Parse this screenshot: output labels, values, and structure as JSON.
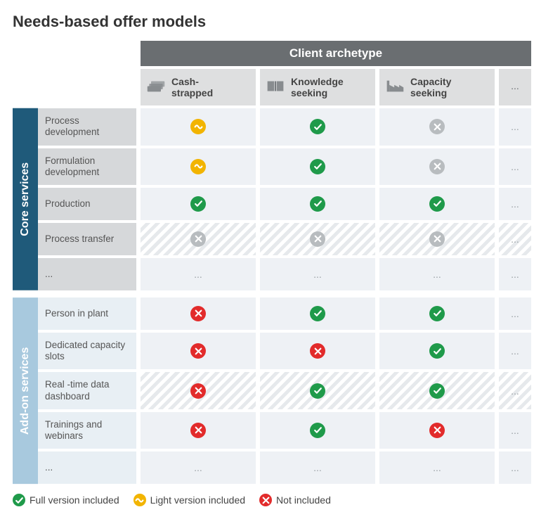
{
  "title": "Needs-based offer models",
  "banner": "Client archetype",
  "archetypes": [
    {
      "label": "Cash-\nstrapped",
      "icon": "cash"
    },
    {
      "label": "Knowledge\nseeking",
      "icon": "book"
    },
    {
      "label": "Capacity\nseeking",
      "icon": "factory"
    }
  ],
  "more": "...",
  "groups": [
    {
      "key": "core",
      "label": "Core services",
      "vcolor": "#1f5a7a",
      "row_bg": "#d6d8da",
      "rows": [
        {
          "label": "Process development",
          "cells": [
            "light",
            "full",
            "gray"
          ]
        },
        {
          "label": "Formulation development",
          "cells": [
            "light",
            "full",
            "gray"
          ]
        },
        {
          "label": "Production",
          "cells": [
            "full",
            "full",
            "full"
          ]
        },
        {
          "label": "Process transfer",
          "cells": [
            "gray",
            "gray",
            "gray"
          ],
          "placeholder": true
        },
        {
          "label": "...",
          "cells": [
            "...",
            "...",
            "..."
          ]
        }
      ]
    },
    {
      "key": "addon",
      "label": "Add-on services",
      "vcolor": "#a8c9de",
      "row_bg": "#e8eff4",
      "rows": [
        {
          "label": "Person in plant",
          "cells": [
            "not",
            "full",
            "full"
          ]
        },
        {
          "label": "Dedicated capacity slots",
          "cells": [
            "not",
            "not",
            "full"
          ]
        },
        {
          "label": "Real -time data dashboard",
          "cells": [
            "not",
            "full",
            "full"
          ],
          "placeholder": true
        },
        {
          "label": "Trainings and webinars",
          "cells": [
            "not",
            "full",
            "not"
          ]
        },
        {
          "label": "...",
          "cells": [
            "...",
            "...",
            "..."
          ]
        }
      ]
    }
  ],
  "legend": [
    {
      "status": "full",
      "label": "Full version included"
    },
    {
      "status": "light",
      "label": "Light version included"
    },
    {
      "status": "not",
      "label": "Not included"
    }
  ],
  "colors": {
    "banner_bg": "#6a6e71",
    "banner_text": "#ffffff",
    "arch_bg": "#dedfe0",
    "cell_bg": "#eef1f5",
    "full": "#1f9a4a",
    "light": "#f2b400",
    "not": "#e22b2b",
    "gray": "#b8bcbf",
    "page_bg": "#ffffff",
    "text": "#333333"
  },
  "fonts": {
    "title_pt": 22,
    "banner_pt": 17,
    "arch_label_pt": 14,
    "row_label_pt": 13.5,
    "legend_pt": 14
  }
}
